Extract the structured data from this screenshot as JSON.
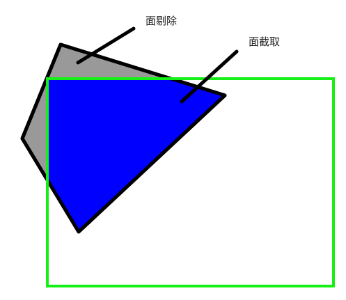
{
  "labels": {
    "face_culling": "面剔除",
    "face_clipping": "面截取"
  },
  "colors": {
    "background": "#ffffff",
    "culled_polygon_fill": "#999999",
    "clipped_polygon_fill": "#0000ff",
    "polygon_outline": "#000000",
    "clip_rectangle_stroke": "#17f017",
    "pointer_line": "#000000"
  }
}
